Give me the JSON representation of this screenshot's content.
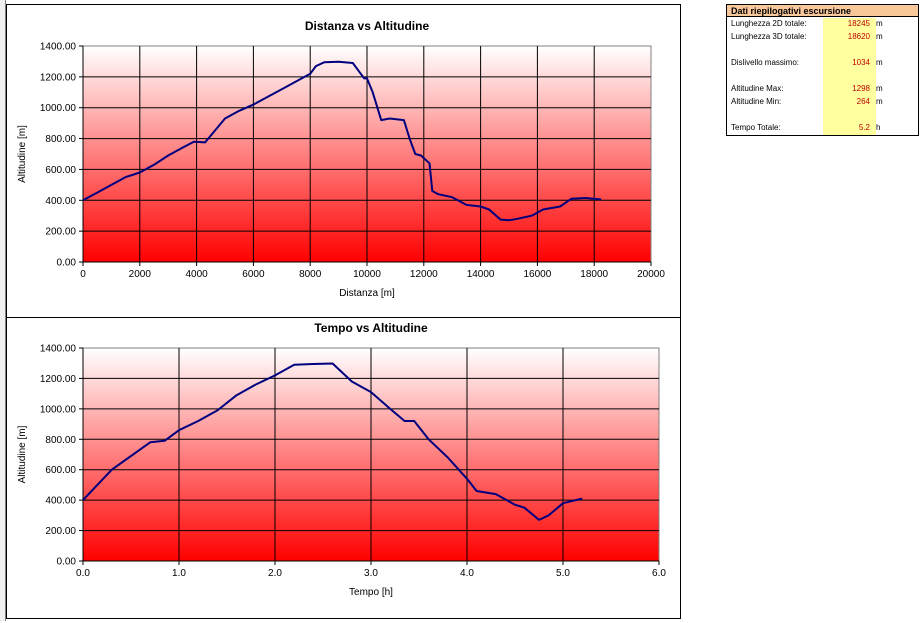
{
  "summary": {
    "title": "Dati riepilogativi escursione",
    "rows": [
      {
        "label": "Lunghezza 2D totale:",
        "value": "18245",
        "unit": "m"
      },
      {
        "label": "Lunghezza 3D totale:",
        "value": "18620",
        "unit": "m"
      },
      {
        "label": "Dislivello massimo:",
        "value": "1034",
        "unit": "m"
      },
      {
        "label": "Altitudine Max:",
        "value": "1298",
        "unit": "m"
      },
      {
        "label": "Altitudine Min:",
        "value": "264",
        "unit": "m"
      },
      {
        "label": "Tempo Totale:",
        "value": "5.2",
        "unit": "h"
      }
    ]
  },
  "colors": {
    "line": "#00007f",
    "gradient_top": "#ffffff",
    "gradient_bottom": "#ff0000",
    "summary_header": "#f8c89b",
    "summary_values_bg": "#ffff9f",
    "summary_value_text": "#c00000"
  },
  "chart_data": [
    {
      "type": "line",
      "title": "Distanza vs Altitudine",
      "xlabel": "Distanza [m]",
      "ylabel": "Altitudine [m]",
      "xlim": [
        0,
        20000
      ],
      "ylim": [
        0,
        1400
      ],
      "xticks": [
        "0",
        "2000",
        "4000",
        "6000",
        "8000",
        "10000",
        "12000",
        "14000",
        "16000",
        "18000",
        "20000"
      ],
      "yticks": [
        "0.00",
        "200.00",
        "400.00",
        "600.00",
        "800.00",
        "1000.00",
        "1200.00",
        "1400.00"
      ],
      "grid": true,
      "x": [
        0,
        500,
        1000,
        1500,
        2000,
        2500,
        3000,
        3500,
        3900,
        4300,
        5000,
        5500,
        6000,
        6500,
        7000,
        7500,
        8000,
        8200,
        8500,
        9000,
        9500,
        9700,
        9900,
        10000,
        10200,
        10500,
        10800,
        11300,
        11500,
        11700,
        11900,
        12200,
        12300,
        12500,
        13000,
        13500,
        14000,
        14300,
        14700,
        15000,
        15300,
        15800,
        16200,
        16800,
        17200,
        17700,
        18245
      ],
      "y": [
        400,
        450,
        500,
        550,
        580,
        630,
        690,
        740,
        780,
        775,
        930,
        980,
        1020,
        1070,
        1120,
        1170,
        1220,
        1270,
        1295,
        1298,
        1290,
        1240,
        1190,
        1190,
        1100,
        920,
        930,
        920,
        800,
        700,
        690,
        640,
        460,
        440,
        420,
        370,
        360,
        340,
        275,
        270,
        280,
        300,
        340,
        360,
        410,
        415,
        405
      ]
    },
    {
      "type": "line",
      "title": "Tempo vs Altitudine",
      "xlabel": "Tempo [h]",
      "ylabel": "Altitudine [m]",
      "xlim": [
        0,
        6
      ],
      "ylim": [
        0,
        1400
      ],
      "xticks": [
        "0.0",
        "1.0",
        "2.0",
        "3.0",
        "4.0",
        "5.0",
        "6.0"
      ],
      "yticks": [
        "0.00",
        "200.00",
        "400.00",
        "600.00",
        "800.00",
        "1000.00",
        "1200.00",
        "1400.00"
      ],
      "grid": true,
      "x": [
        0,
        0.3,
        0.7,
        0.85,
        1.0,
        1.2,
        1.4,
        1.6,
        1.8,
        2.0,
        2.2,
        2.4,
        2.6,
        2.8,
        3.0,
        3.2,
        3.35,
        3.45,
        3.6,
        3.8,
        4.0,
        4.1,
        4.3,
        4.5,
        4.6,
        4.75,
        4.85,
        5.0,
        5.2
      ],
      "y": [
        400,
        600,
        780,
        790,
        860,
        920,
        990,
        1090,
        1160,
        1220,
        1290,
        1295,
        1298,
        1180,
        1110,
        1000,
        920,
        920,
        800,
        680,
        540,
        460,
        440,
        370,
        350,
        270,
        300,
        380,
        410
      ]
    }
  ]
}
